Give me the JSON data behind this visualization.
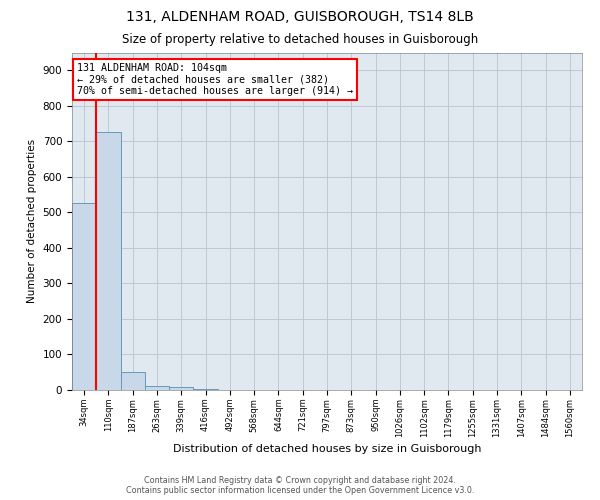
{
  "title": "131, ALDENHAM ROAD, GUISBOROUGH, TS14 8LB",
  "subtitle": "Size of property relative to detached houses in Guisborough",
  "xlabel": "Distribution of detached houses by size in Guisborough",
  "ylabel": "Number of detached properties",
  "bin_labels": [
    "34sqm",
    "110sqm",
    "187sqm",
    "263sqm",
    "339sqm",
    "416sqm",
    "492sqm",
    "568sqm",
    "644sqm",
    "721sqm",
    "797sqm",
    "873sqm",
    "950sqm",
    "1026sqm",
    "1102sqm",
    "1179sqm",
    "1255sqm",
    "1331sqm",
    "1407sqm",
    "1484sqm",
    "1560sqm"
  ],
  "bar_heights": [
    525,
    727,
    50,
    10,
    8,
    2,
    1,
    0,
    0,
    0,
    0,
    0,
    0,
    0,
    0,
    0,
    0,
    0,
    0,
    0,
    0
  ],
  "bar_color": "#c8d8e8",
  "bar_edge_color": "#6699bb",
  "grid_color": "#c0c8d8",
  "background_color": "#e0e8f0",
  "red_line_x": 0.5,
  "annotation_text": "131 ALDENHAM ROAD: 104sqm\n← 29% of detached houses are smaller (382)\n70% of semi-detached houses are larger (914) →",
  "annotation_box_color": "white",
  "annotation_border_color": "red",
  "ylim": [
    0,
    950
  ],
  "yticks": [
    0,
    100,
    200,
    300,
    400,
    500,
    600,
    700,
    800,
    900
  ],
  "footer_line1": "Contains HM Land Registry data © Crown copyright and database right 2024.",
  "footer_line2": "Contains public sector information licensed under the Open Government Licence v3.0."
}
